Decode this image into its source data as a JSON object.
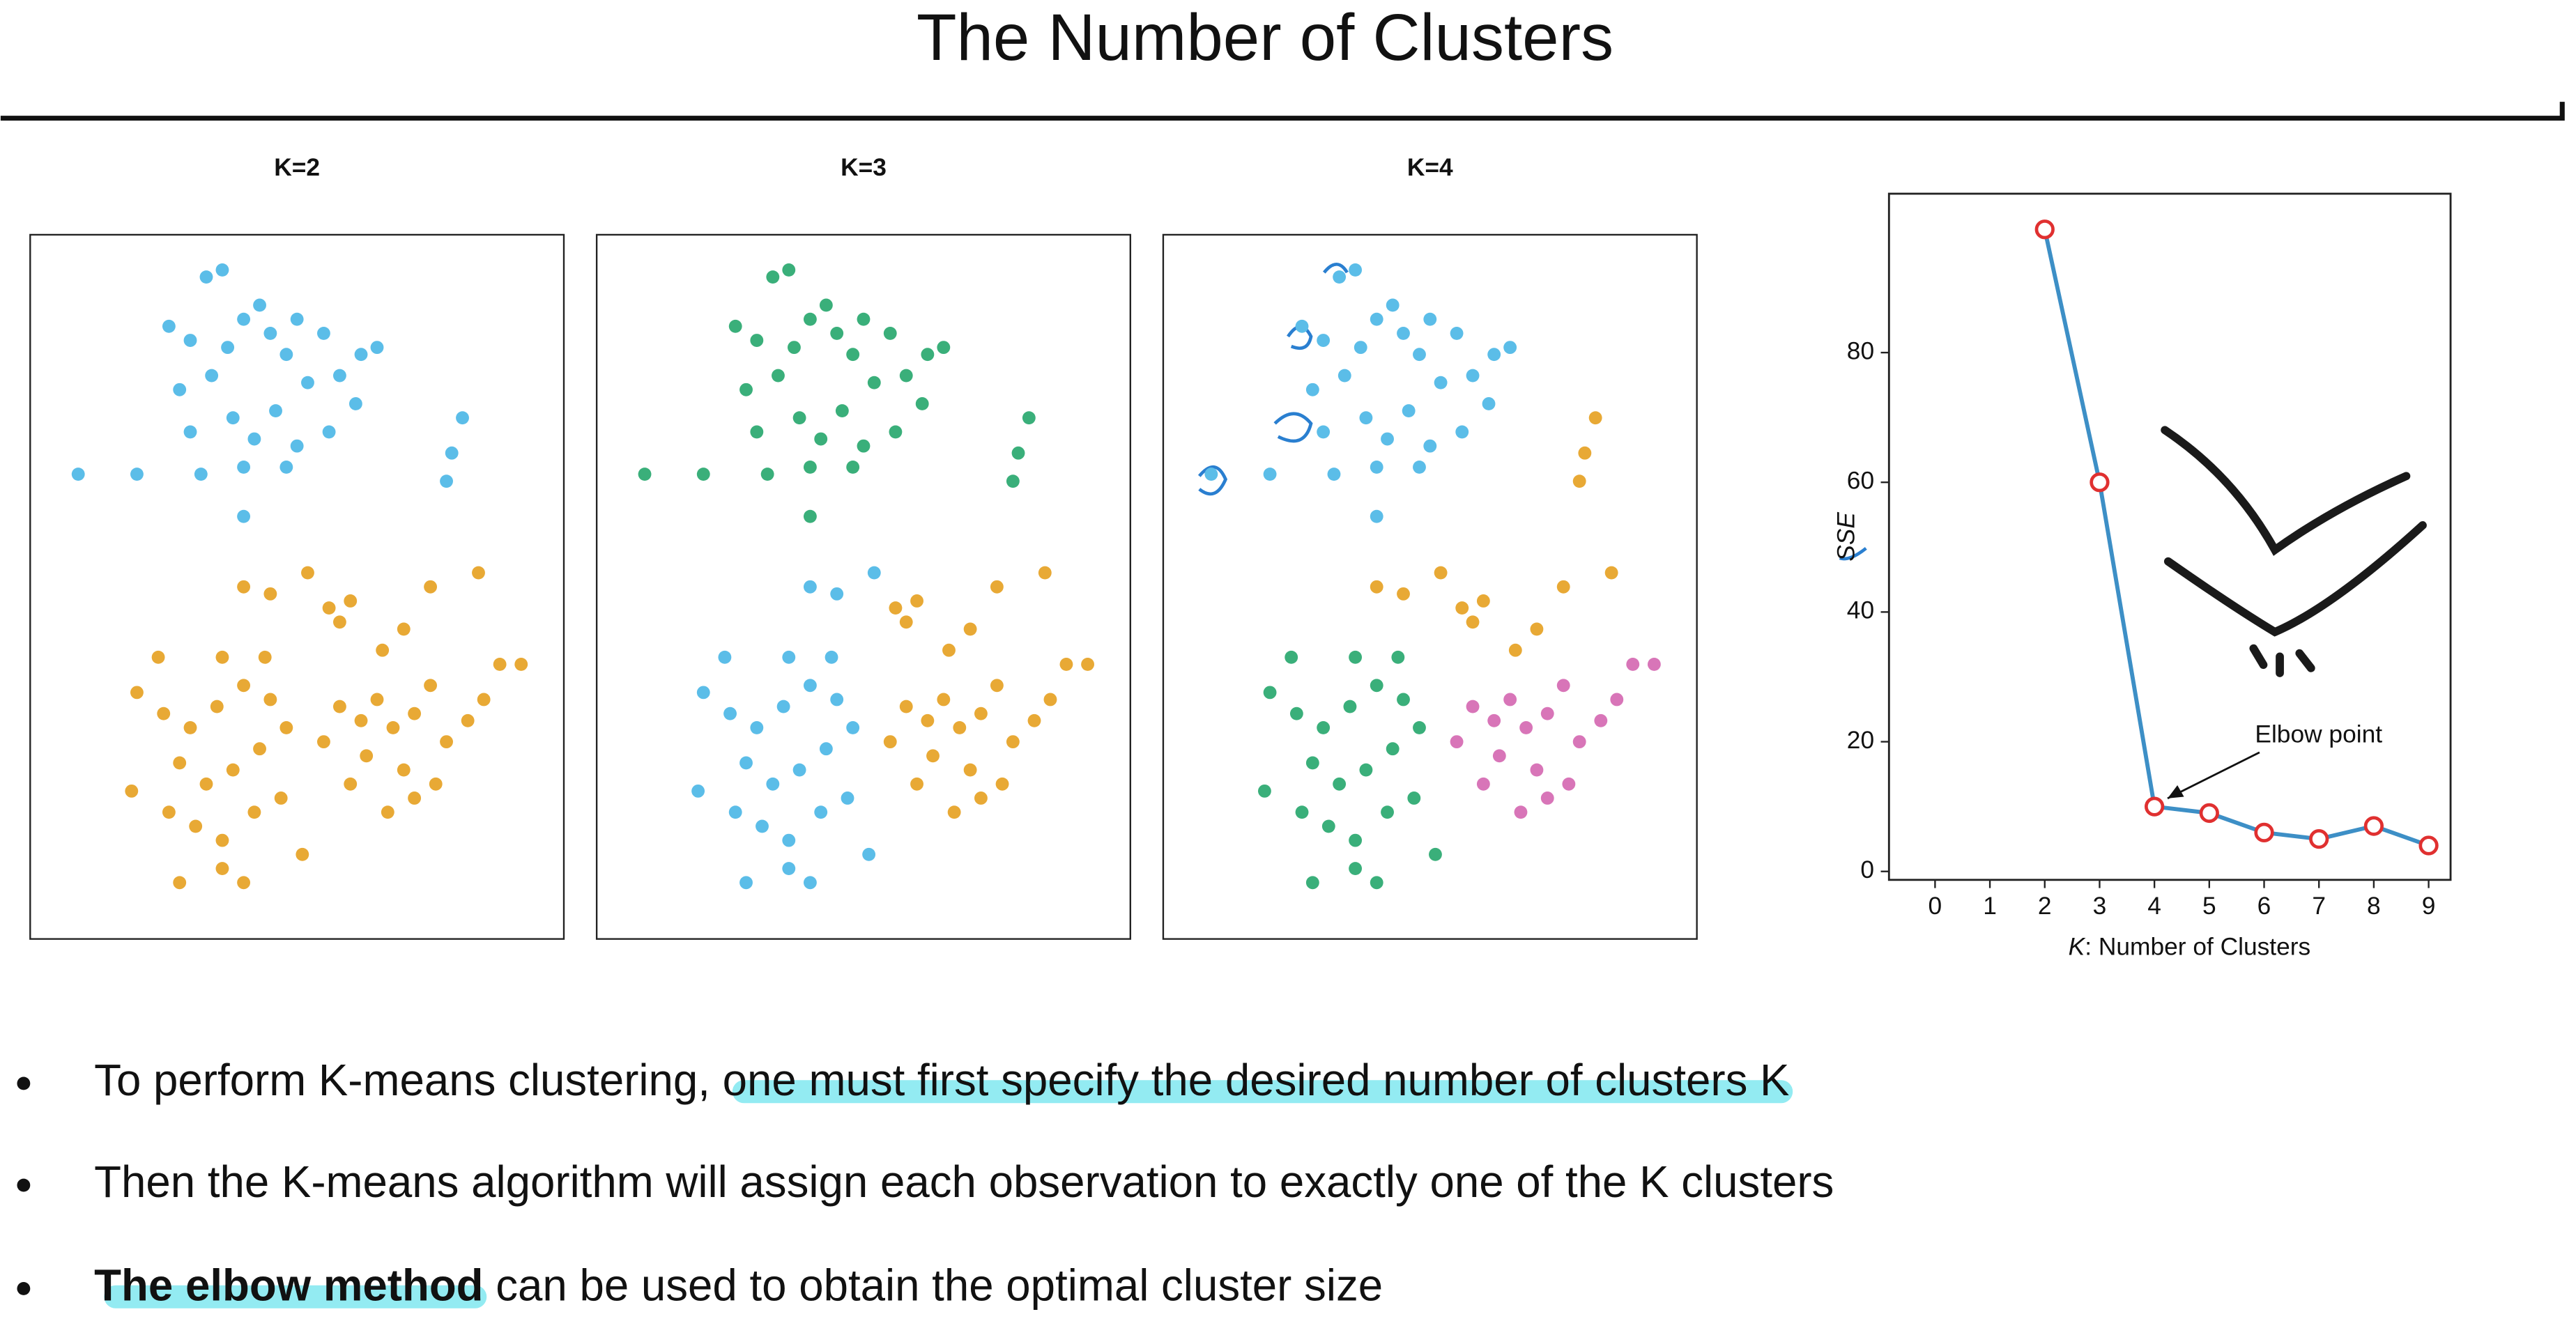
{
  "title": "The Number of Clusters",
  "chart_data": [
    {
      "type": "scatter",
      "title": "K=2",
      "xlim": [
        0,
        100
      ],
      "ylim": [
        0,
        100
      ],
      "series": [
        {
          "color": "#5bbde8",
          "x": [
            33,
            36,
            26,
            43,
            40,
            30,
            37,
            45,
            50,
            55,
            62,
            65,
            48,
            34,
            28,
            52,
            58,
            61,
            46,
            38,
            30,
            42,
            50,
            56,
            48,
            40,
            32,
            20,
            9,
            40,
            81,
            79,
            78
          ],
          "y": [
            94,
            95,
            87,
            90,
            88,
            85,
            84,
            86,
            88,
            86,
            83,
            84,
            83,
            80,
            78,
            79,
            80,
            76,
            75,
            74,
            72,
            71,
            70,
            72,
            67,
            67,
            66,
            66,
            66,
            60,
            74,
            69,
            65
          ]
        },
        {
          "color": "#e8a935",
          "x": [
            20,
            25,
            30,
            35,
            40,
            45,
            28,
            33,
            38,
            43,
            48,
            26,
            31,
            36,
            42,
            47,
            36,
            40,
            28,
            24,
            36,
            44,
            19,
            51,
            58,
            62,
            65,
            68,
            72,
            75,
            78,
            82,
            85,
            88,
            92,
            63,
            70,
            76,
            60,
            67,
            72,
            55,
            40,
            45,
            52,
            56,
            60,
            58,
            66,
            70,
            75,
            84
          ],
          "y": [
            35,
            32,
            30,
            33,
            36,
            34,
            25,
            22,
            24,
            27,
            30,
            18,
            16,
            14,
            18,
            20,
            10,
            8,
            8,
            40,
            40,
            40,
            21,
            12,
            33,
            31,
            34,
            30,
            32,
            36,
            28,
            31,
            34,
            39,
            39,
            26,
            24,
            22,
            22,
            18,
            20,
            28,
            50,
            49,
            52,
            47,
            48,
            45,
            41,
            44,
            50,
            52
          ]
        }
      ]
    },
    {
      "type": "scatter",
      "title": "K=3",
      "xlim": [
        0,
        100
      ],
      "ylim": [
        0,
        100
      ],
      "series": [
        {
          "color": "#3aaf7a",
          "x": [
            33,
            36,
            26,
            43,
            40,
            30,
            37,
            45,
            50,
            55,
            62,
            65,
            48,
            34,
            28,
            52,
            58,
            61,
            46,
            38,
            30,
            42,
            50,
            56,
            48,
            40,
            32,
            20,
            9,
            40,
            81,
            79,
            78
          ],
          "y": [
            94,
            95,
            87,
            90,
            88,
            85,
            84,
            86,
            88,
            86,
            83,
            84,
            83,
            80,
            78,
            79,
            80,
            76,
            75,
            74,
            72,
            71,
            70,
            72,
            67,
            67,
            66,
            66,
            66,
            60,
            74,
            69,
            65
          ]
        },
        {
          "color": "#5bbde8",
          "x": [
            20,
            25,
            30,
            35,
            40,
            45,
            28,
            33,
            38,
            43,
            48,
            26,
            31,
            36,
            42,
            47,
            36,
            40,
            28,
            24,
            36,
            44,
            19,
            51,
            40,
            45,
            52
          ],
          "y": [
            35,
            32,
            30,
            33,
            36,
            34,
            25,
            22,
            24,
            27,
            30,
            18,
            16,
            14,
            18,
            20,
            10,
            8,
            8,
            40,
            40,
            40,
            21,
            12,
            50,
            49,
            52
          ]
        },
        {
          "color": "#e8a935",
          "x": [
            58,
            62,
            65,
            68,
            72,
            75,
            78,
            82,
            85,
            88,
            92,
            63,
            70,
            76,
            60,
            67,
            72,
            55,
            56,
            60,
            58,
            66,
            70,
            75,
            84
          ],
          "y": [
            33,
            31,
            34,
            30,
            32,
            36,
            28,
            31,
            34,
            39,
            39,
            26,
            24,
            22,
            22,
            18,
            20,
            28,
            47,
            48,
            45,
            41,
            44,
            50,
            52
          ]
        }
      ]
    },
    {
      "type": "scatter",
      "title": "K=4",
      "xlim": [
        0,
        100
      ],
      "ylim": [
        0,
        100
      ],
      "series": [
        {
          "color": "#5bbde8",
          "x": [
            33,
            36,
            26,
            43,
            40,
            30,
            37,
            45,
            50,
            55,
            62,
            65,
            48,
            34,
            28,
            52,
            58,
            61,
            46,
            38,
            30,
            42,
            50,
            56,
            48,
            40,
            32,
            20,
            9,
            40
          ],
          "y": [
            94,
            95,
            87,
            90,
            88,
            85,
            84,
            86,
            88,
            86,
            83,
            84,
            83,
            80,
            78,
            79,
            80,
            76,
            75,
            74,
            72,
            71,
            70,
            72,
            67,
            67,
            66,
            66,
            66,
            60
          ]
        },
        {
          "color": "#e8a935",
          "x": [
            81,
            79,
            78,
            40,
            45,
            52,
            56,
            60,
            58,
            66,
            70,
            75,
            84
          ],
          "y": [
            74,
            69,
            65,
            50,
            49,
            52,
            47,
            48,
            45,
            41,
            44,
            50,
            52
          ]
        },
        {
          "color": "#3aaf7a",
          "x": [
            20,
            25,
            30,
            35,
            40,
            45,
            28,
            33,
            38,
            43,
            48,
            26,
            31,
            36,
            42,
            47,
            36,
            40,
            28,
            24,
            36,
            44,
            19,
            51
          ],
          "y": [
            35,
            32,
            30,
            33,
            36,
            34,
            25,
            22,
            24,
            27,
            30,
            18,
            16,
            14,
            18,
            20,
            10,
            8,
            8,
            40,
            40,
            40,
            21,
            12
          ]
        },
        {
          "color": "#d875b8",
          "x": [
            58,
            62,
            65,
            68,
            72,
            75,
            78,
            82,
            85,
            88,
            92,
            63,
            70,
            76,
            60,
            67,
            72,
            55
          ],
          "y": [
            33,
            31,
            34,
            30,
            32,
            36,
            28,
            31,
            34,
            39,
            39,
            26,
            24,
            22,
            22,
            18,
            20,
            28
          ]
        }
      ]
    },
    {
      "type": "line",
      "x_label_italic": "K",
      "x_label": ": Number of Clusters",
      "y_label": "SSE",
      "x": [
        2,
        3,
        4,
        5,
        6,
        7,
        8,
        9
      ],
      "values": [
        99,
        60,
        10,
        9,
        6,
        5,
        7,
        4
      ],
      "color": "#3d8fc6",
      "marker_color": "#e03030",
      "xlim": [
        -0.84,
        9.4
      ],
      "ylim": [
        -1.3,
        104.5
      ],
      "xticks": [
        0,
        1,
        2,
        3,
        4,
        5,
        6,
        7,
        8,
        9
      ],
      "yticks": [
        0,
        20,
        40,
        60,
        80
      ],
      "annotation": {
        "text": "Elbow point",
        "x": 4,
        "y": 10
      }
    }
  ],
  "bullets": [
    [
      {
        "text": "To perform K-means clustering, "
      },
      {
        "text": "one must first specify the desired number of clusters K",
        "highlight": true
      }
    ],
    [
      {
        "text": "Then the K-means algorithm will assign each observation to exactly one of the K clusters"
      }
    ],
    [
      {
        "text": "The elbow method",
        "bold": true,
        "highlight": true
      },
      {
        "text": " can be used to obtain the optimal cluster size"
      }
    ]
  ]
}
